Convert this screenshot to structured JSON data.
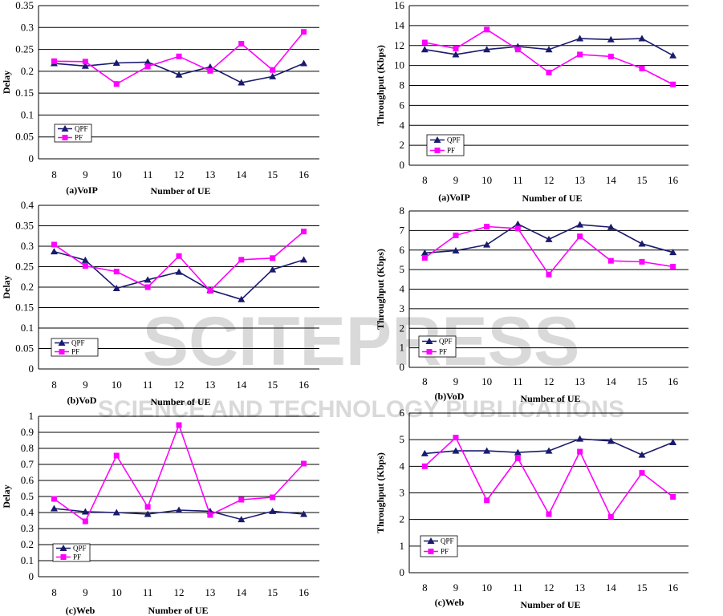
{
  "figure": {
    "watermark_text": "SCITEPRESS",
    "watermark_sub": "SCIENCE AND TECHNOLOGY PUBLICATIONS"
  },
  "colors": {
    "qpf": "#1a1a6e",
    "pf": "#ff00ff",
    "grid": "#000000"
  },
  "chart_data": [
    {
      "id": "voip-delay",
      "type": "line",
      "caption": "(a)VoIP",
      "xlabel": "Number of UE",
      "ylabel": "Delay",
      "x": [
        "8",
        "9",
        "10",
        "11",
        "12",
        "13",
        "14",
        "15",
        "16"
      ],
      "ylim": [
        0,
        0.35
      ],
      "yticks": [
        "0",
        "0.05",
        "0.1",
        "0.15",
        "0.2",
        "0.25",
        "0.3",
        "0.35"
      ],
      "ytick_values": [
        0,
        0.05,
        0.1,
        0.15,
        0.2,
        0.25,
        0.3,
        0.35
      ],
      "legend": [
        "QPF",
        "PF"
      ],
      "series": [
        {
          "name": "QPF",
          "marker": "triangle",
          "values": [
            0.218,
            0.212,
            0.219,
            0.221,
            0.192,
            0.21,
            0.174,
            0.188,
            0.218
          ]
        },
        {
          "name": "PF",
          "marker": "square",
          "values": [
            0.223,
            0.222,
            0.171,
            0.211,
            0.234,
            0.201,
            0.263,
            0.203,
            0.29
          ]
        }
      ]
    },
    {
      "id": "voip-throughput",
      "type": "line",
      "caption": "(a)VoIP",
      "xlabel": "Number of UE",
      "ylabel": "Throughput (Kbps)",
      "x": [
        "8",
        "9",
        "10",
        "11",
        "12",
        "13",
        "14",
        "15",
        "16"
      ],
      "ylim": [
        0,
        16
      ],
      "yticks": [
        "0",
        "2",
        "4",
        "6",
        "8",
        "10",
        "12",
        "14",
        "16"
      ],
      "ytick_values": [
        0,
        2,
        4,
        6,
        8,
        10,
        12,
        14,
        16
      ],
      "legend": [
        "QPF",
        "PF"
      ],
      "series": [
        {
          "name": "QPF",
          "marker": "triangle",
          "values": [
            11.6,
            11.1,
            11.6,
            11.9,
            11.6,
            12.7,
            12.6,
            12.7,
            11.0
          ]
        },
        {
          "name": "PF",
          "marker": "square",
          "values": [
            12.3,
            11.7,
            13.6,
            11.6,
            9.3,
            11.1,
            10.9,
            9.7,
            8.1
          ]
        }
      ]
    },
    {
      "id": "vod-delay",
      "type": "line",
      "caption": "(b)VoD",
      "xlabel": "Number of UE",
      "ylabel": "Delay",
      "x": [
        "8",
        "9",
        "10",
        "11",
        "12",
        "13",
        "14",
        "15",
        "16"
      ],
      "ylim": [
        0,
        0.4
      ],
      "yticks": [
        "0",
        "0.05",
        "0.1",
        "0.15",
        "0.2",
        "0.25",
        "0.3",
        "0.35",
        "0.4"
      ],
      "ytick_values": [
        0,
        0.05,
        0.1,
        0.15,
        0.2,
        0.25,
        0.3,
        0.35,
        0.4
      ],
      "legend": [
        "QPF",
        "PF"
      ],
      "series": [
        {
          "name": "QPF",
          "marker": "triangle",
          "values": [
            0.287,
            0.266,
            0.197,
            0.218,
            0.237,
            0.193,
            0.17,
            0.243,
            0.267
          ]
        },
        {
          "name": "PF",
          "marker": "square",
          "values": [
            0.304,
            0.252,
            0.238,
            0.2,
            0.276,
            0.191,
            0.267,
            0.271,
            0.336
          ]
        }
      ]
    },
    {
      "id": "vod-throughput",
      "type": "line",
      "caption": "(b)VoD",
      "xlabel": "Number of UE",
      "ylabel": "Throughput (Kbps)",
      "x": [
        "8",
        "9",
        "10",
        "11",
        "12",
        "13",
        "14",
        "15",
        "16"
      ],
      "ylim": [
        0,
        8
      ],
      "yticks": [
        "0",
        "1",
        "2",
        "3",
        "4",
        "5",
        "6",
        "7",
        "8"
      ],
      "ytick_values": [
        0,
        1,
        2,
        3,
        4,
        5,
        6,
        7,
        8
      ],
      "legend": [
        "QPF",
        "PF"
      ],
      "series": [
        {
          "name": "QPF",
          "marker": "triangle",
          "values": [
            5.85,
            5.97,
            6.27,
            7.33,
            6.55,
            7.3,
            7.17,
            6.32,
            5.88
          ]
        },
        {
          "name": "PF",
          "marker": "square",
          "values": [
            5.6,
            6.75,
            7.2,
            7.1,
            4.75,
            6.7,
            5.45,
            5.4,
            5.15
          ]
        }
      ]
    },
    {
      "id": "web-delay",
      "type": "line",
      "caption": "(c)Web",
      "xlabel": "Number of UE",
      "ylabel": "Delay",
      "x": [
        "8",
        "9",
        "10",
        "11",
        "12",
        "13",
        "14",
        "15",
        "16"
      ],
      "ylim": [
        0,
        1
      ],
      "yticks": [
        "0",
        "0.1",
        "0.2",
        "0.3",
        "0.4",
        "0.5",
        "0.6",
        "0.7",
        "0.8",
        "0.9",
        "1"
      ],
      "ytick_values": [
        0,
        0.1,
        0.2,
        0.3,
        0.4,
        0.5,
        0.6,
        0.7,
        0.8,
        0.9,
        1
      ],
      "legend": [
        "QPF",
        "PF"
      ],
      "series": [
        {
          "name": "QPF",
          "marker": "triangle",
          "values": [
            0.425,
            0.405,
            0.4,
            0.39,
            0.415,
            0.408,
            0.357,
            0.408,
            0.39
          ]
        },
        {
          "name": "PF",
          "marker": "square",
          "values": [
            0.485,
            0.345,
            0.755,
            0.435,
            0.945,
            0.385,
            0.48,
            0.495,
            0.705
          ]
        }
      ]
    },
    {
      "id": "web-throughput",
      "type": "line",
      "caption": "(c)Web",
      "xlabel": "Number of UE",
      "ylabel": "Throughput (Kbps)",
      "x": [
        "8",
        "9",
        "10",
        "11",
        "12",
        "13",
        "14",
        "15",
        "16"
      ],
      "ylim": [
        0,
        6
      ],
      "yticks": [
        "0",
        "1",
        "2",
        "3",
        "4",
        "5",
        "6"
      ],
      "ytick_values": [
        0,
        1,
        2,
        3,
        4,
        5,
        6
      ],
      "legend": [
        "QPF",
        "PF"
      ],
      "series": [
        {
          "name": "QPF",
          "marker": "triangle",
          "values": [
            4.48,
            4.58,
            4.58,
            4.52,
            4.58,
            5.03,
            4.95,
            4.43,
            4.9
          ]
        },
        {
          "name": "PF",
          "marker": "square",
          "values": [
            4.0,
            5.08,
            2.72,
            4.3,
            2.2,
            4.55,
            2.1,
            3.75,
            2.85
          ]
        }
      ]
    }
  ]
}
